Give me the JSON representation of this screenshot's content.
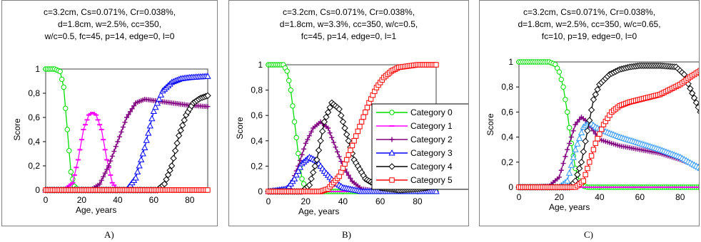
{
  "chart_data": [
    {
      "type": "line",
      "panel_label": "A)",
      "title_lines": [
        "c=3.2cm, Cs=0.071%, Cr=0.038%,",
        "d=1.8cm, w=2.5%, cc=350,",
        "w/c=0.5, fc=45, p=14, edge=0, l=0"
      ],
      "xlabel": "Age, years",
      "ylabel": "Score",
      "xlim": [
        0,
        90
      ],
      "ylim": [
        0,
        1
      ],
      "xticks": [
        "0",
        "20",
        "40",
        "60",
        "80"
      ],
      "yticks": [
        "0",
        "0,2",
        "0,4",
        "0,6",
        "0,8",
        "1"
      ],
      "grid": false,
      "legend": false,
      "series": [
        {
          "category": 0,
          "color": "#00dd00",
          "marker": "circle",
          "points": [
            [
              0,
              1
            ],
            [
              5,
              1
            ],
            [
              8,
              0.98
            ],
            [
              10,
              0.85
            ],
            [
              12,
              0.5
            ],
            [
              14,
              0.15
            ],
            [
              16,
              0.03
            ],
            [
              18,
              0
            ],
            [
              90,
              0
            ]
          ]
        },
        {
          "category": 1,
          "color": "#ff00ff",
          "marker": "dash",
          "points": [
            [
              0,
              0
            ],
            [
              10,
              0
            ],
            [
              15,
              0.06
            ],
            [
              18,
              0.25
            ],
            [
              21,
              0.5
            ],
            [
              24,
              0.62
            ],
            [
              26,
              0.64
            ],
            [
              28,
              0.62
            ],
            [
              31,
              0.5
            ],
            [
              34,
              0.25
            ],
            [
              37,
              0.06
            ],
            [
              40,
              0
            ],
            [
              90,
              0
            ]
          ]
        },
        {
          "category": 2,
          "color": "#800080",
          "marker": "plus",
          "points": [
            [
              0,
              0
            ],
            [
              25,
              0
            ],
            [
              30,
              0.05
            ],
            [
              35,
              0.2
            ],
            [
              40,
              0.4
            ],
            [
              45,
              0.6
            ],
            [
              50,
              0.72
            ],
            [
              55,
              0.75
            ],
            [
              60,
              0.74
            ],
            [
              70,
              0.72
            ],
            [
              80,
              0.7
            ],
            [
              90,
              0.69
            ]
          ]
        },
        {
          "category": 3,
          "color": "#0000ff",
          "marker": "triangle",
          "points": [
            [
              0,
              0
            ],
            [
              45,
              0
            ],
            [
              50,
              0.1
            ],
            [
              55,
              0.35
            ],
            [
              60,
              0.65
            ],
            [
              65,
              0.82
            ],
            [
              70,
              0.89
            ],
            [
              75,
              0.92
            ],
            [
              80,
              0.93
            ],
            [
              90,
              0.94
            ]
          ]
        },
        {
          "category": 4,
          "color": "#000000",
          "marker": "diamond",
          "points": [
            [
              0,
              0
            ],
            [
              62,
              0
            ],
            [
              66,
              0.05
            ],
            [
              70,
              0.2
            ],
            [
              74,
              0.45
            ],
            [
              78,
              0.62
            ],
            [
              82,
              0.72
            ],
            [
              86,
              0.76
            ],
            [
              90,
              0.78
            ]
          ]
        },
        {
          "category": 5,
          "color": "#ff0000",
          "marker": "square",
          "points": [
            [
              0,
              0
            ],
            [
              90,
              0
            ]
          ]
        }
      ]
    },
    {
      "type": "line",
      "panel_label": "B)",
      "title_lines": [
        "c=3.2cm, Cs=0.071%, Cr=0.038%,",
        "d=1.8cm, w=3.3%, cc=350, w/c=0.5,",
        "fc=45, p=14, edge=0, l=1"
      ],
      "xlabel": "Age, years",
      "ylabel": "Score",
      "xlim": [
        0,
        90
      ],
      "ylim": [
        0,
        1
      ],
      "xticks": [
        "0",
        "20",
        "40",
        "60",
        "80"
      ],
      "yticks": [
        "0",
        "0,2",
        "0,4",
        "0,6",
        "0,8",
        "1"
      ],
      "grid": false,
      "legend": true,
      "legend_position": "right",
      "legend_entries": [
        "Category 0",
        "Category 1",
        "Category 2",
        "Category 3",
        "Category 4",
        "Category 5"
      ],
      "series": [
        {
          "category": 0,
          "color": "#00dd00",
          "marker": "circle",
          "points": [
            [
              0,
              1
            ],
            [
              8,
              1
            ],
            [
              10,
              0.95
            ],
            [
              12,
              0.8
            ],
            [
              14,
              0.55
            ],
            [
              16,
              0.3
            ],
            [
              18,
              0.1
            ],
            [
              20,
              0.02
            ],
            [
              22,
              0
            ],
            [
              90,
              0
            ]
          ]
        },
        {
          "category": 1,
          "color": "#ff00ff",
          "marker": "dash",
          "points": [
            [
              0,
              0
            ],
            [
              90,
              0
            ]
          ]
        },
        {
          "category": 2,
          "color": "#800080",
          "marker": "plus",
          "points": [
            [
              0,
              0
            ],
            [
              8,
              0.01
            ],
            [
              12,
              0.05
            ],
            [
              16,
              0.2
            ],
            [
              20,
              0.38
            ],
            [
              24,
              0.5
            ],
            [
              28,
              0.55
            ],
            [
              32,
              0.5
            ],
            [
              36,
              0.35
            ],
            [
              40,
              0.2
            ],
            [
              45,
              0.08
            ],
            [
              50,
              0.02
            ],
            [
              60,
              0
            ],
            [
              90,
              0
            ]
          ]
        },
        {
          "category": 3,
          "color": "#0000ff",
          "marker": "triangle",
          "points": [
            [
              0,
              0
            ],
            [
              10,
              0.02
            ],
            [
              14,
              0.1
            ],
            [
              18,
              0.22
            ],
            [
              22,
              0.27
            ],
            [
              26,
              0.24
            ],
            [
              30,
              0.16
            ],
            [
              35,
              0.08
            ],
            [
              40,
              0.03
            ],
            [
              50,
              0
            ],
            [
              90,
              0
            ]
          ]
        },
        {
          "category": 4,
          "color": "#000000",
          "marker": "diamond",
          "points": [
            [
              0,
              0
            ],
            [
              18,
              0
            ],
            [
              22,
              0.05
            ],
            [
              26,
              0.25
            ],
            [
              30,
              0.55
            ],
            [
              34,
              0.7
            ],
            [
              38,
              0.65
            ],
            [
              42,
              0.45
            ],
            [
              46,
              0.25
            ],
            [
              52,
              0.1
            ],
            [
              60,
              0.03
            ],
            [
              70,
              0.01
            ],
            [
              80,
              0.02
            ],
            [
              85,
              0.03
            ],
            [
              90,
              0.05
            ]
          ]
        },
        {
          "category": 5,
          "color": "#ff0000",
          "marker": "square",
          "points": [
            [
              0,
              0
            ],
            [
              28,
              0
            ],
            [
              32,
              0.02
            ],
            [
              38,
              0.12
            ],
            [
              42,
              0.25
            ],
            [
              46,
              0.4
            ],
            [
              50,
              0.55
            ],
            [
              54,
              0.7
            ],
            [
              58,
              0.82
            ],
            [
              62,
              0.9
            ],
            [
              66,
              0.95
            ],
            [
              70,
              0.98
            ],
            [
              80,
              1
            ],
            [
              90,
              1
            ]
          ]
        }
      ]
    },
    {
      "type": "line",
      "panel_label": "C)",
      "title_lines": [
        "c=3.2cm, Cs=0.071%, Cr=0.038%,",
        "d=1.8cm, w=2.5%, cc=350, w/c=0.65,",
        "fc=10, p=19, edge=0, l=0"
      ],
      "xlabel": "Age, years",
      "ylabel": "Score",
      "xlim": [
        0,
        90
      ],
      "ylim": [
        0,
        1
      ],
      "xticks": [
        "0",
        "20",
        "40",
        "60",
        "80"
      ],
      "yticks": [
        "0",
        "0,2",
        "0,4",
        "0,6",
        "0,8",
        "1"
      ],
      "grid": false,
      "legend": false,
      "series": [
        {
          "category": 0,
          "color": "#00dd00",
          "marker": "circle",
          "points": [
            [
              0,
              1
            ],
            [
              15,
              1
            ],
            [
              18,
              0.98
            ],
            [
              20,
              0.92
            ],
            [
              22,
              0.8
            ],
            [
              24,
              0.6
            ],
            [
              26,
              0.35
            ],
            [
              28,
              0.15
            ],
            [
              30,
              0.05
            ],
            [
              32,
              0.01
            ],
            [
              34,
              0
            ],
            [
              90,
              0
            ]
          ]
        },
        {
          "category": 1,
          "color": "#ff00ff",
          "marker": "dash",
          "points": [
            [
              0,
              0
            ],
            [
              90,
              0
            ]
          ]
        },
        {
          "category": 2,
          "color": "#800080",
          "marker": "plus",
          "points": [
            [
              0,
              0
            ],
            [
              15,
              0.01
            ],
            [
              20,
              0.08
            ],
            [
              24,
              0.3
            ],
            [
              28,
              0.5
            ],
            [
              31,
              0.56
            ],
            [
              34,
              0.52
            ],
            [
              37,
              0.45
            ],
            [
              40,
              0.38
            ],
            [
              50,
              0.33
            ],
            [
              60,
              0.3
            ],
            [
              70,
              0.27
            ],
            [
              80,
              0.22
            ],
            [
              90,
              0.16
            ]
          ]
        },
        {
          "category": 3,
          "color": "#3399ff",
          "marker": "triangle",
          "points": [
            [
              0,
              0
            ],
            [
              20,
              0
            ],
            [
              24,
              0.05
            ],
            [
              28,
              0.3
            ],
            [
              32,
              0.48
            ],
            [
              35,
              0.52
            ],
            [
              38,
              0.48
            ],
            [
              42,
              0.45
            ],
            [
              50,
              0.4
            ],
            [
              60,
              0.35
            ],
            [
              70,
              0.3
            ],
            [
              80,
              0.24
            ],
            [
              90,
              0.15
            ]
          ]
        },
        {
          "category": 4,
          "color": "#000000",
          "marker": "diamond",
          "points": [
            [
              0,
              0
            ],
            [
              25,
              0
            ],
            [
              28,
              0.05
            ],
            [
              31,
              0.2
            ],
            [
              34,
              0.45
            ],
            [
              37,
              0.7
            ],
            [
              40,
              0.82
            ],
            [
              45,
              0.9
            ],
            [
              50,
              0.94
            ],
            [
              55,
              0.96
            ],
            [
              60,
              0.97
            ],
            [
              70,
              0.97
            ],
            [
              78,
              0.96
            ],
            [
              82,
              0.9
            ],
            [
              86,
              0.75
            ],
            [
              90,
              0.6
            ]
          ]
        },
        {
          "category": 5,
          "color": "#ff0000",
          "marker": "square",
          "points": [
            [
              0,
              0
            ],
            [
              28,
              0
            ],
            [
              32,
              0.05
            ],
            [
              35,
              0.2
            ],
            [
              38,
              0.35
            ],
            [
              42,
              0.5
            ],
            [
              46,
              0.6
            ],
            [
              50,
              0.65
            ],
            [
              55,
              0.68
            ],
            [
              60,
              0.7
            ],
            [
              70,
              0.74
            ],
            [
              80,
              0.82
            ],
            [
              85,
              0.88
            ],
            [
              90,
              0.93
            ]
          ]
        }
      ]
    }
  ]
}
